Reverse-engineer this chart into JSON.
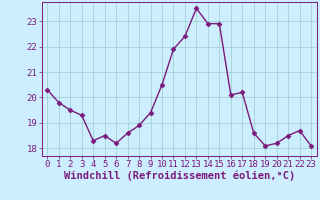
{
  "x": [
    0,
    1,
    2,
    3,
    4,
    5,
    6,
    7,
    8,
    9,
    10,
    11,
    12,
    13,
    14,
    15,
    16,
    17,
    18,
    19,
    20,
    21,
    22,
    23
  ],
  "y": [
    20.3,
    19.8,
    19.5,
    19.3,
    18.3,
    18.5,
    18.2,
    18.6,
    18.9,
    19.4,
    20.5,
    21.9,
    22.4,
    23.5,
    22.9,
    22.9,
    20.1,
    20.2,
    18.6,
    18.1,
    18.2,
    18.5,
    18.7,
    18.1
  ],
  "line_color": "#7B1A7B",
  "marker": "D",
  "marker_size": 2.5,
  "bg_color": "#cceeff",
  "grid_color": "#99cccc",
  "xlabel": "Windchill (Refroidissement éolien,°C)",
  "xlim": [
    -0.5,
    23.5
  ],
  "ylim": [
    17.7,
    23.75
  ],
  "yticks": [
    18,
    19,
    20,
    21,
    22,
    23
  ],
  "xticks": [
    0,
    1,
    2,
    3,
    4,
    5,
    6,
    7,
    8,
    9,
    10,
    11,
    12,
    13,
    14,
    15,
    16,
    17,
    18,
    19,
    20,
    21,
    22,
    23
  ],
  "tick_labelsize": 6.5,
  "xlabel_fontsize": 7.5,
  "line_width": 1.0
}
